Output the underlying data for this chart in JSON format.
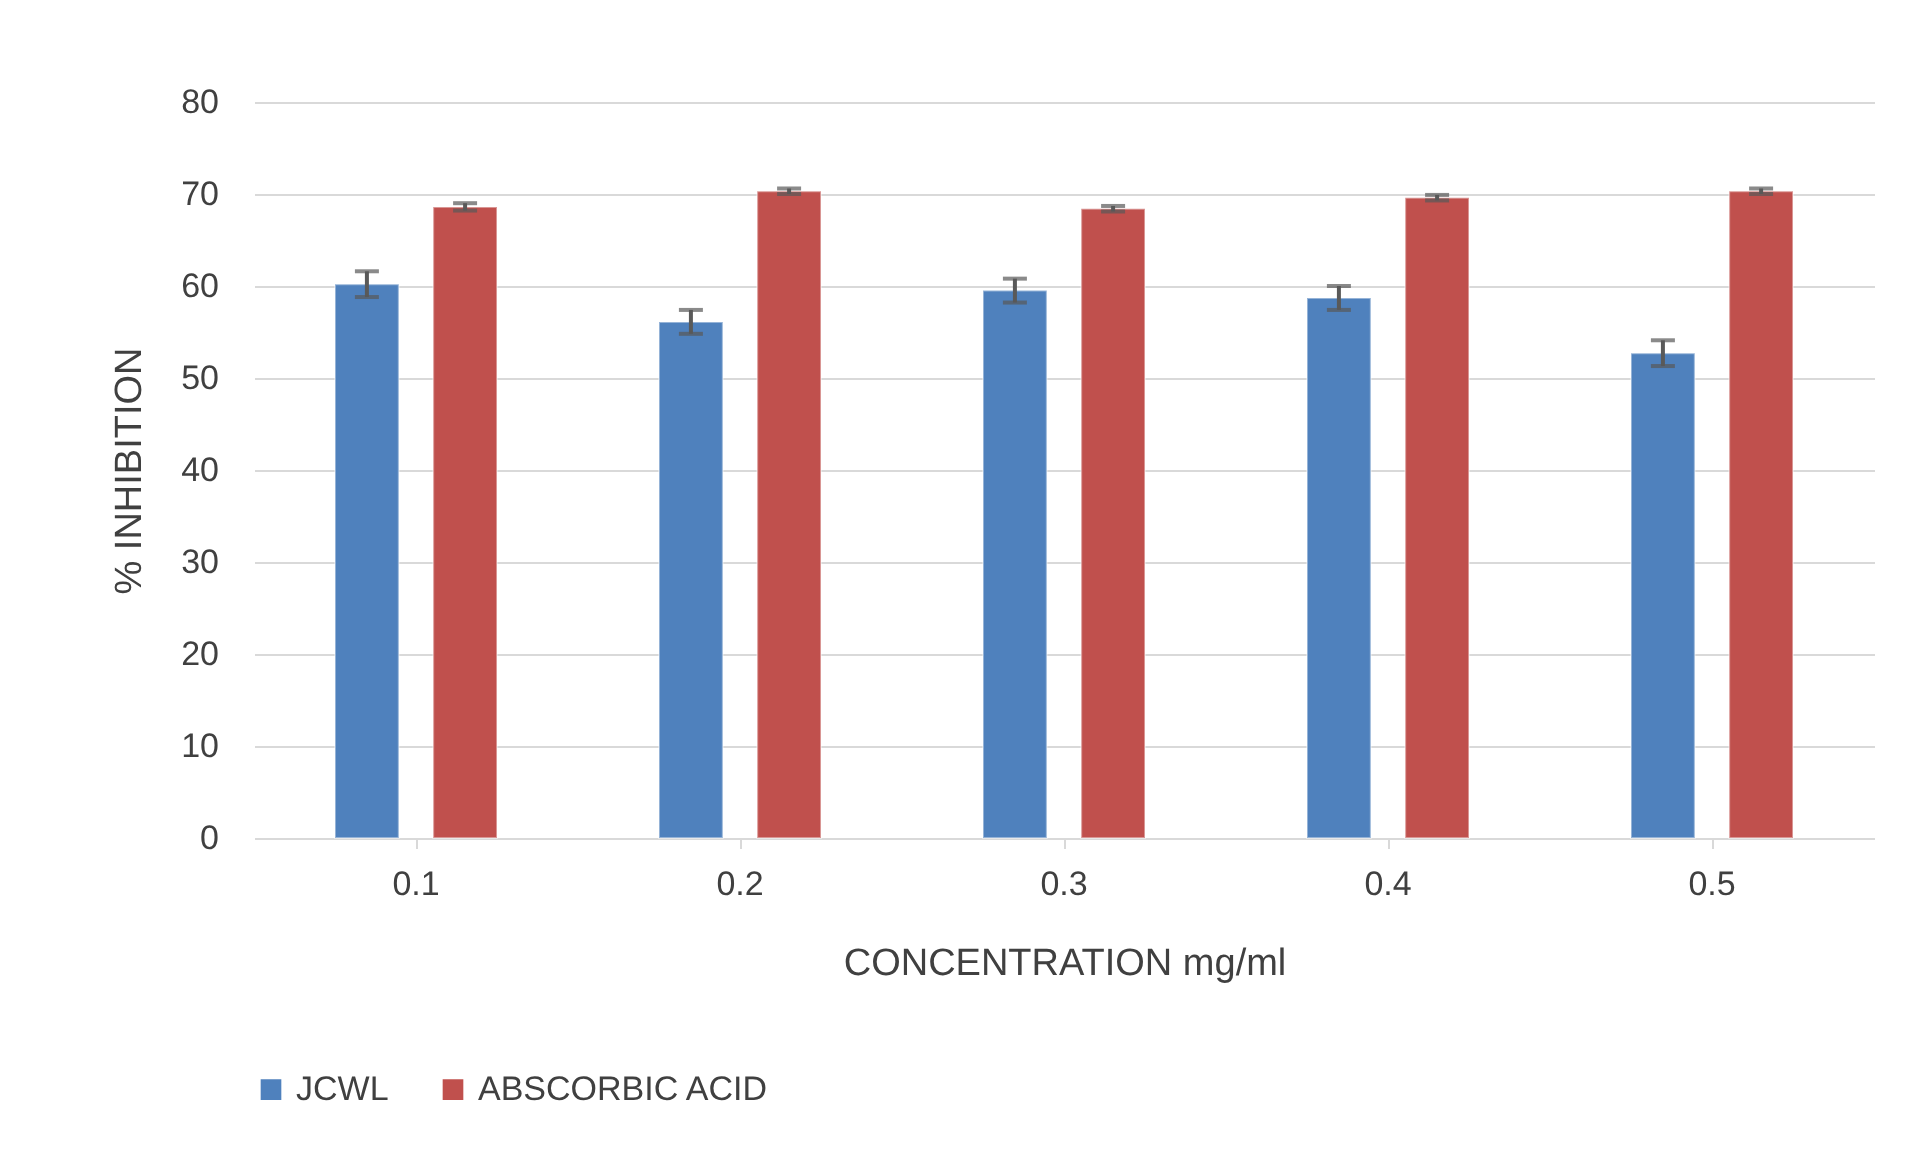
{
  "chart_data": {
    "type": "bar",
    "xlabel": "CONCENTRATION mg/ml",
    "ylabel": "% INHIBITION",
    "categories": [
      "0.1",
      "0.2",
      "0.3",
      "0.4",
      "0.5"
    ],
    "series": [
      {
        "name": "JCWL",
        "color": "#4f81bd",
        "values": [
          60.2,
          56.1,
          59.5,
          58.7,
          52.7
        ],
        "errors": [
          1.4,
          1.3,
          1.3,
          1.3,
          1.4
        ]
      },
      {
        "name": "ABSCORBIC ACID",
        "color": "#c0504d",
        "values": [
          68.6,
          70.3,
          68.4,
          69.6,
          70.3
        ],
        "errors": [
          0.4,
          0.3,
          0.3,
          0.3,
          0.3
        ]
      }
    ],
    "ylim": [
      0,
      80
    ],
    "yticks": [
      0,
      10,
      20,
      30,
      40,
      50,
      60,
      70,
      80
    ],
    "grid": "y",
    "legend": "bottom"
  }
}
